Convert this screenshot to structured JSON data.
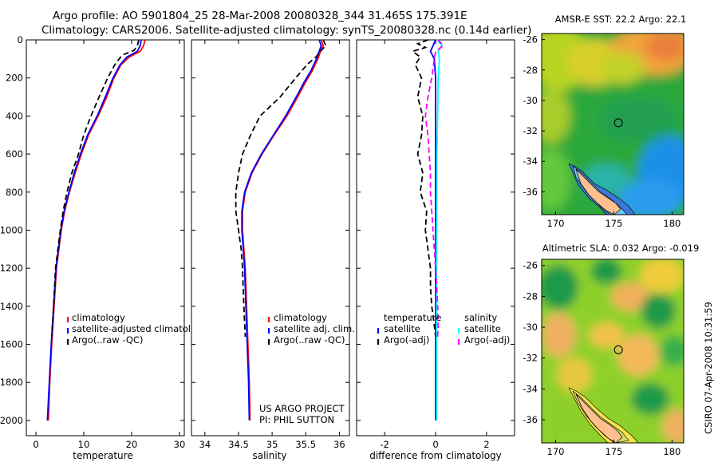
{
  "header": {
    "line1": "Argo profile: AO 5901804_25 28-Mar-2008 20080328_344 31.465S 175.391E",
    "line2": "Climatology: CARS2006. Satellite-adjusted climatology: synTS_20080328.nc (0.14d earlier)"
  },
  "colors": {
    "clim": "#ff0000",
    "sat": "#0000ff",
    "argo": "#000000",
    "sal_sat": "#00ffff",
    "sal_argo": "#ff00ff",
    "coast": "#ffbf8f",
    "circle": "#000000"
  },
  "chart_data": [
    {
      "type": "line",
      "name": "temperature-profile",
      "xlabel": "temperature",
      "ylabel": "",
      "xlim": [
        -2,
        31
      ],
      "ylim": [
        0,
        2080
      ],
      "y_reversed": true,
      "x_ticks": [
        "0",
        "10",
        "20",
        "30"
      ],
      "y_ticks": [
        "0",
        "200",
        "400",
        "600",
        "800",
        "1000",
        "1200",
        "1400",
        "1600",
        "1800",
        "2000"
      ],
      "legend": [
        "climatology",
        "satellite-adjusted climatology",
        "Argo(..raw -QC)"
      ],
      "series": [
        {
          "name": "climatology",
          "style": "solid",
          "color": "#ff0000",
          "points": [
            [
              22.8,
              0
            ],
            [
              22.5,
              30
            ],
            [
              21.8,
              60
            ],
            [
              19.5,
              90
            ],
            [
              17.8,
              130
            ],
            [
              16.3,
              200
            ],
            [
              14.8,
              300
            ],
            [
              13.0,
              400
            ],
            [
              11.0,
              500
            ],
            [
              9.5,
              600
            ],
            [
              8.2,
              700
            ],
            [
              7.0,
              800
            ],
            [
              6.0,
              900
            ],
            [
              5.3,
              1000
            ],
            [
              4.8,
              1100
            ],
            [
              4.3,
              1200
            ],
            [
              3.8,
              1400
            ],
            [
              3.3,
              1600
            ],
            [
              2.9,
              1800
            ],
            [
              2.6,
              2000
            ]
          ]
        },
        {
          "name": "satellite-adjusted climatology",
          "style": "solid",
          "color": "#0000ff",
          "points": [
            [
              22.0,
              0
            ],
            [
              21.8,
              30
            ],
            [
              21.2,
              60
            ],
            [
              19.0,
              90
            ],
            [
              17.6,
              130
            ],
            [
              16.1,
              200
            ],
            [
              14.5,
              300
            ],
            [
              12.8,
              400
            ],
            [
              10.8,
              500
            ],
            [
              9.3,
              600
            ],
            [
              8.0,
              700
            ],
            [
              6.9,
              800
            ],
            [
              5.9,
              900
            ],
            [
              5.2,
              1000
            ],
            [
              4.7,
              1100
            ],
            [
              4.2,
              1200
            ],
            [
              3.7,
              1400
            ],
            [
              3.2,
              1600
            ],
            [
              2.8,
              1800
            ],
            [
              2.4,
              2000
            ]
          ]
        },
        {
          "name": "Argo(..raw -QC)",
          "style": "dashed",
          "color": "#000000",
          "points": [
            [
              21.5,
              0
            ],
            [
              21.2,
              30
            ],
            [
              20.5,
              55
            ],
            [
              18.0,
              80
            ],
            [
              16.5,
              130
            ],
            [
              15.0,
              200
            ],
            [
              13.2,
              300
            ],
            [
              11.5,
              400
            ],
            [
              10.0,
              500
            ],
            [
              8.9,
              600
            ],
            [
              7.5,
              700
            ],
            [
              6.5,
              800
            ],
            [
              5.7,
              900
            ],
            [
              5.1,
              1000
            ],
            [
              4.6,
              1100
            ],
            [
              4.1,
              1200
            ],
            [
              3.7,
              1400
            ],
            [
              3.3,
              1560
            ]
          ]
        }
      ]
    },
    {
      "type": "line",
      "name": "salinity-profile",
      "xlabel": "salinity",
      "xlim": [
        33.8,
        36.15
      ],
      "ylim": [
        0,
        2080
      ],
      "y_reversed": true,
      "x_ticks": [
        "34",
        "34.5",
        "35",
        "35.5",
        "36"
      ],
      "legend": [
        "climatology",
        "satellite adj. clim.",
        "Argo(..raw -QC)"
      ],
      "annotation": [
        "US ARGO PROJECT",
        "PI: PHIL SUTTON"
      ],
      "series": [
        {
          "name": "climatology",
          "style": "solid",
          "color": "#ff0000",
          "points": [
            [
              35.73,
              0
            ],
            [
              35.76,
              30
            ],
            [
              35.72,
              60
            ],
            [
              35.68,
              100
            ],
            [
              35.6,
              160
            ],
            [
              35.5,
              220
            ],
            [
              35.38,
              300
            ],
            [
              35.22,
              400
            ],
            [
              35.03,
              500
            ],
            [
              34.85,
              600
            ],
            [
              34.7,
              700
            ],
            [
              34.6,
              800
            ],
            [
              34.56,
              900
            ],
            [
              34.56,
              1000
            ],
            [
              34.58,
              1100
            ],
            [
              34.6,
              1200
            ],
            [
              34.62,
              1400
            ],
            [
              34.64,
              1600
            ],
            [
              34.66,
              1800
            ],
            [
              34.67,
              2000
            ]
          ]
        },
        {
          "name": "satellite adj. clim.",
          "style": "solid",
          "color": "#0000ff",
          "points": [
            [
              35.7,
              0
            ],
            [
              35.73,
              30
            ],
            [
              35.7,
              60
            ],
            [
              35.66,
              100
            ],
            [
              35.58,
              160
            ],
            [
              35.48,
              220
            ],
            [
              35.36,
              300
            ],
            [
              35.2,
              400
            ],
            [
              35.02,
              500
            ],
            [
              34.84,
              600
            ],
            [
              34.69,
              700
            ],
            [
              34.59,
              800
            ],
            [
              34.55,
              900
            ],
            [
              34.55,
              1000
            ],
            [
              34.57,
              1100
            ],
            [
              34.59,
              1200
            ],
            [
              34.61,
              1400
            ],
            [
              34.63,
              1600
            ],
            [
              34.65,
              1800
            ],
            [
              34.66,
              2000
            ]
          ]
        },
        {
          "name": "Argo(..raw -QC)",
          "style": "dashed",
          "color": "#000000",
          "points": [
            [
              35.76,
              0
            ],
            [
              35.8,
              30
            ],
            [
              35.73,
              55
            ],
            [
              35.65,
              90
            ],
            [
              35.52,
              130
            ],
            [
              35.35,
              200
            ],
            [
              35.12,
              300
            ],
            [
              34.82,
              400
            ],
            [
              34.68,
              500
            ],
            [
              34.56,
              600
            ],
            [
              34.5,
              700
            ],
            [
              34.46,
              800
            ],
            [
              34.46,
              900
            ],
            [
              34.5,
              1000
            ],
            [
              34.54,
              1100
            ],
            [
              34.56,
              1200
            ],
            [
              34.58,
              1400
            ],
            [
              34.6,
              1560
            ]
          ]
        }
      ]
    },
    {
      "type": "line",
      "name": "difference-profile",
      "xlabel": "difference from climatology",
      "xlim": [
        -3.1,
        3.1
      ],
      "ylim": [
        0,
        2080
      ],
      "y_reversed": true,
      "x_ticks": [
        "-2",
        "0",
        "2"
      ],
      "legend_left": {
        "title": "temperature",
        "entries": [
          "satellite",
          "Argo(-adj)"
        ]
      },
      "legend_right": {
        "title": "salinity",
        "entries": [
          "satellite",
          "Argo(-adj)"
        ]
      },
      "series": [
        {
          "name": "temperature satellite",
          "style": "solid",
          "color": "#0000ff",
          "points": [
            [
              0.0,
              0
            ],
            [
              -0.1,
              30
            ],
            [
              -0.2,
              60
            ],
            [
              -0.05,
              100
            ],
            [
              0.0,
              200
            ],
            [
              0.0,
              400
            ],
            [
              0.0,
              600
            ],
            [
              0.0,
              800
            ],
            [
              0.0,
              1000
            ],
            [
              0.0,
              1200
            ],
            [
              0.0,
              1400
            ],
            [
              0.0,
              1600
            ],
            [
              0.0,
              1800
            ],
            [
              0.0,
              2000
            ]
          ]
        },
        {
          "name": "temperature Argo(-adj)",
          "style": "dashed",
          "color": "#000000",
          "points": [
            [
              -0.3,
              0
            ],
            [
              -0.7,
              20
            ],
            [
              -0.4,
              40
            ],
            [
              -0.9,
              60
            ],
            [
              -0.6,
              90
            ],
            [
              -0.8,
              130
            ],
            [
              -0.55,
              200
            ],
            [
              -0.7,
              300
            ],
            [
              -0.5,
              400
            ],
            [
              -0.55,
              500
            ],
            [
              -0.7,
              600
            ],
            [
              -0.5,
              700
            ],
            [
              -0.6,
              800
            ],
            [
              -0.35,
              900
            ],
            [
              -0.4,
              1000
            ],
            [
              -0.3,
              1100
            ],
            [
              -0.2,
              1200
            ],
            [
              -0.2,
              1300
            ],
            [
              -0.15,
              1400
            ],
            [
              -0.05,
              1500
            ],
            [
              0.0,
              1560
            ]
          ]
        },
        {
          "name": "salinity satellite",
          "style": "solid",
          "color": "#00ffff",
          "points": [
            [
              0.05,
              0
            ],
            [
              0.25,
              30
            ],
            [
              0.1,
              60
            ],
            [
              0.15,
              100
            ],
            [
              0.1,
              200
            ],
            [
              0.08,
              400
            ],
            [
              0.05,
              600
            ],
            [
              0.05,
              800
            ],
            [
              0.04,
              1000
            ],
            [
              0.04,
              1200
            ],
            [
              0.04,
              1400
            ],
            [
              0.04,
              1600
            ],
            [
              0.04,
              1800
            ],
            [
              0.04,
              2000
            ]
          ]
        },
        {
          "name": "salinity Argo(-adj)",
          "style": "dashed",
          "color": "#ff00ff",
          "points": [
            [
              0.1,
              0
            ],
            [
              0.3,
              30
            ],
            [
              0.0,
              60
            ],
            [
              -0.05,
              100
            ],
            [
              -0.15,
              200
            ],
            [
              -0.3,
              300
            ],
            [
              -0.4,
              400
            ],
            [
              -0.3,
              500
            ],
            [
              -0.25,
              600
            ],
            [
              -0.2,
              700
            ],
            [
              -0.2,
              800
            ],
            [
              -0.15,
              900
            ],
            [
              -0.1,
              1000
            ],
            [
              -0.05,
              1100
            ],
            [
              0.0,
              1200
            ],
            [
              0.05,
              1300
            ],
            [
              0.08,
              1400
            ],
            [
              0.1,
              1500
            ],
            [
              0.08,
              1560
            ]
          ]
        }
      ]
    },
    {
      "type": "heatmap",
      "name": "sst-map",
      "title": "AMSR-E SST: 22.2 Argo: 22.1",
      "xlim": [
        168.8,
        181
      ],
      "ylim": [
        -37.5,
        -25.6
      ],
      "x_ticks": [
        "170",
        "175",
        "180"
      ],
      "y_ticks": [
        "-26",
        "-28",
        "-30",
        "-32",
        "-34",
        "-36"
      ],
      "argo_position": [
        175.391,
        -31.465
      ]
    },
    {
      "type": "heatmap",
      "name": "sla-map",
      "title": "Altimetric SLA: 0.032 Argo: -0.019",
      "xlim": [
        168.8,
        181
      ],
      "ylim": [
        -37.5,
        -25.6
      ],
      "x_ticks": [
        "170",
        "175",
        "180"
      ],
      "y_ticks": [
        "-26",
        "-28",
        "-30",
        "-32",
        "-34",
        "-36"
      ],
      "argo_position": [
        175.391,
        -31.465
      ]
    }
  ],
  "footer": {
    "credit": "CSIRO 07-Apr-2008 10:31:59"
  }
}
